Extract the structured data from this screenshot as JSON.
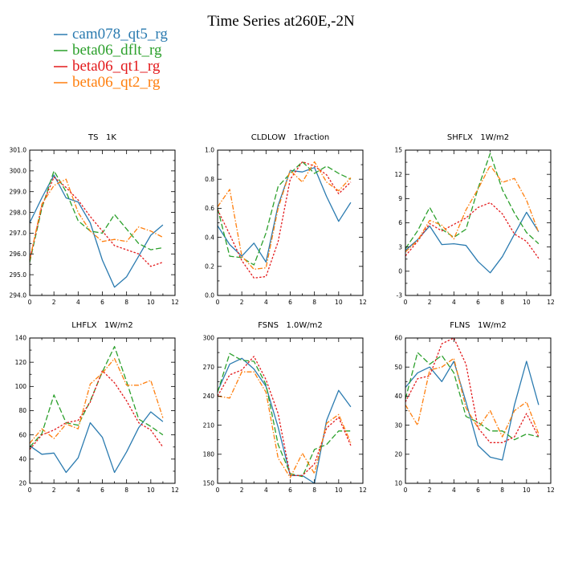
{
  "figure_title": "Time Series at260E,-2N",
  "colors": {
    "cam078_qt5_rg": "#2b7bb0",
    "beta06_dflt_rg": "#2ca02c",
    "beta06_qt1_rg": "#e31a1c",
    "beta06_qt2_rg": "#ff7f0e"
  },
  "legend": [
    {
      "name": "cam078_qt5_rg",
      "color": "#2b7bb0"
    },
    {
      "name": "beta06_dflt_rg",
      "color": "#2ca02c"
    },
    {
      "name": "beta06_qt1_rg",
      "color": "#e31a1c"
    },
    {
      "name": "beta06_qt2_rg",
      "color": "#ff7f0e"
    }
  ],
  "chart_data": [
    {
      "type": "line",
      "title": "TS   1K",
      "x": [
        0,
        1,
        2,
        3,
        4,
        5,
        6,
        7,
        8,
        9,
        10,
        11
      ],
      "xlim": [
        0,
        12
      ],
      "xticks": [
        "0",
        "2",
        "4",
        "6",
        "8",
        "10",
        "12"
      ],
      "ylim": [
        294,
        301
      ],
      "yticks": [
        "294.0",
        "295.0",
        "296.0",
        "297.0",
        "298.0",
        "299.0",
        "300.0",
        "301.0"
      ],
      "series": [
        {
          "name": "cam078_qt5_rg",
          "values": [
            297.5,
            298.7,
            299.8,
            298.7,
            298.5,
            297.5,
            295.7,
            294.4,
            294.9,
            295.9,
            296.9,
            297.4
          ]
        },
        {
          "name": "beta06_dflt_rg",
          "values": [
            295.6,
            298.2,
            300.0,
            299.0,
            297.6,
            297.1,
            297.0,
            297.9,
            297.2,
            296.5,
            296.2,
            296.3
          ]
        },
        {
          "name": "beta06_qt1_rg",
          "values": [
            295.7,
            298.3,
            299.7,
            299.2,
            298.6,
            297.8,
            297.1,
            296.4,
            296.2,
            296.0,
            295.4,
            295.6
          ]
        },
        {
          "name": "beta06_qt2_rg",
          "values": [
            295.7,
            298.4,
            299.3,
            299.6,
            298.0,
            297.1,
            296.6,
            296.7,
            296.6,
            297.3,
            297.1,
            296.8
          ]
        }
      ]
    },
    {
      "type": "line",
      "title": "CLDLOW   1fraction",
      "x": [
        0,
        1,
        2,
        3,
        4,
        5,
        6,
        7,
        8,
        9,
        10,
        11
      ],
      "xlim": [
        0,
        12
      ],
      "xticks": [
        "0",
        "2",
        "4",
        "6",
        "8",
        "10",
        "12"
      ],
      "ylim": [
        0,
        1
      ],
      "yticks": [
        "0.0",
        "0.2",
        "0.4",
        "0.6",
        "0.8",
        "1.0"
      ],
      "series": [
        {
          "name": "cam078_qt5_rg",
          "values": [
            0.48,
            0.35,
            0.27,
            0.36,
            0.23,
            0.62,
            0.86,
            0.85,
            0.88,
            0.68,
            0.51,
            0.64
          ]
        },
        {
          "name": "beta06_dflt_rg",
          "values": [
            0.6,
            0.27,
            0.26,
            0.21,
            0.43,
            0.75,
            0.84,
            0.92,
            0.84,
            0.89,
            0.84,
            0.8
          ]
        },
        {
          "name": "beta06_qt1_rg",
          "values": [
            0.59,
            0.42,
            0.24,
            0.12,
            0.13,
            0.37,
            0.8,
            0.92,
            0.89,
            0.83,
            0.7,
            0.78
          ]
        },
        {
          "name": "beta06_qt2_rg",
          "values": [
            0.61,
            0.73,
            0.27,
            0.18,
            0.19,
            0.6,
            0.86,
            0.78,
            0.92,
            0.78,
            0.72,
            0.81
          ]
        }
      ]
    },
    {
      "type": "line",
      "title": "SHFLX   1W/m2",
      "x": [
        0,
        1,
        2,
        3,
        4,
        5,
        6,
        7,
        8,
        9,
        10,
        11
      ],
      "xlim": [
        0,
        12
      ],
      "xticks": [
        "0",
        "2",
        "4",
        "6",
        "8",
        "10",
        "12"
      ],
      "ylim": [
        -3,
        15
      ],
      "yticks": [
        "-3",
        "0",
        "3",
        "6",
        "9",
        "12",
        "15"
      ],
      "series": [
        {
          "name": "cam078_qt5_rg",
          "values": [
            2.6,
            3.9,
            5.6,
            3.3,
            3.4,
            3.2,
            1.2,
            -0.2,
            1.8,
            4.6,
            7.3,
            4.9
          ]
        },
        {
          "name": "beta06_dflt_rg",
          "values": [
            2.8,
            5.0,
            7.9,
            5.2,
            4.2,
            5.2,
            10.3,
            14.6,
            10.1,
            7.2,
            4.8,
            3.4
          ]
        },
        {
          "name": "beta06_qt1_rg",
          "values": [
            1.9,
            3.7,
            5.9,
            5.0,
            5.8,
            6.6,
            7.9,
            8.5,
            7.1,
            4.6,
            3.7,
            1.6
          ]
        },
        {
          "name": "beta06_qt2_rg",
          "values": [
            2.4,
            3.8,
            6.3,
            5.7,
            4.0,
            7.6,
            10.2,
            13.1,
            11.0,
            11.5,
            8.8,
            4.8
          ]
        }
      ]
    },
    {
      "type": "line",
      "title": "LHFLX   1W/m2",
      "x": [
        0,
        1,
        2,
        3,
        4,
        5,
        6,
        7,
        8,
        9,
        10,
        11
      ],
      "xlim": [
        0,
        12
      ],
      "xticks": [
        "0",
        "2",
        "4",
        "6",
        "8",
        "10",
        "12"
      ],
      "ylim": [
        20,
        140
      ],
      "yticks": [
        "20",
        "40",
        "60",
        "80",
        "100",
        "120",
        "140"
      ],
      "series": [
        {
          "name": "cam078_qt5_rg",
          "values": [
            51,
            44,
            45,
            29,
            41,
            70,
            58,
            29,
            46,
            66,
            79,
            71
          ]
        },
        {
          "name": "beta06_dflt_rg",
          "values": [
            50,
            61,
            93,
            70,
            68,
            88,
            112,
            133,
            104,
            73,
            67,
            60
          ]
        },
        {
          "name": "beta06_qt1_rg",
          "values": [
            48,
            60,
            64,
            70,
            72,
            87,
            113,
            103,
            88,
            70,
            64,
            50
          ]
        },
        {
          "name": "beta06_qt2_rg",
          "values": [
            53,
            65,
            57,
            69,
            65,
            102,
            111,
            123,
            101,
            101,
            105,
            74
          ]
        }
      ]
    },
    {
      "type": "line",
      "title": "FSNS   1.0W/m2",
      "x": [
        0,
        1,
        2,
        3,
        4,
        5,
        6,
        7,
        8,
        9,
        10,
        11
      ],
      "xlim": [
        0,
        12
      ],
      "xticks": [
        "0",
        "2",
        "4",
        "6",
        "8",
        "10",
        "12"
      ],
      "ylim": [
        150,
        300
      ],
      "yticks": [
        "150",
        "180",
        "210",
        "240",
        "270",
        "300"
      ],
      "series": [
        {
          "name": "cam078_qt5_rg",
          "values": [
            245,
            273,
            279,
            268,
            250,
            208,
            158,
            158,
            150,
            215,
            246,
            229
          ]
        },
        {
          "name": "beta06_dflt_rg",
          "values": [
            244,
            284,
            277,
            276,
            252,
            190,
            160,
            157,
            185,
            190,
            204,
            204
          ]
        },
        {
          "name": "beta06_qt1_rg",
          "values": [
            240,
            262,
            267,
            281,
            257,
            222,
            158,
            158,
            170,
            207,
            218,
            189
          ]
        },
        {
          "name": "beta06_qt2_rg",
          "values": [
            240,
            238,
            265,
            265,
            244,
            176,
            156,
            181,
            160,
            212,
            221,
            192
          ]
        }
      ]
    },
    {
      "type": "line",
      "title": "FLNS   1W/m2",
      "x": [
        0,
        1,
        2,
        3,
        4,
        5,
        6,
        7,
        8,
        9,
        10,
        11
      ],
      "xlim": [
        0,
        12
      ],
      "xticks": [
        "0",
        "2",
        "4",
        "6",
        "8",
        "10",
        "12"
      ],
      "ylim": [
        10,
        60
      ],
      "yticks": [
        "10",
        "20",
        "30",
        "40",
        "50",
        "60"
      ],
      "series": [
        {
          "name": "cam078_qt5_rg",
          "values": [
            43,
            48,
            50,
            45,
            52,
            38,
            23,
            19,
            18,
            37,
            52,
            37
          ]
        },
        {
          "name": "beta06_dflt_rg",
          "values": [
            39,
            55,
            51,
            54,
            48,
            33,
            31,
            28,
            28,
            25,
            27,
            26
          ]
        },
        {
          "name": "beta06_qt1_rg",
          "values": [
            38,
            46,
            47,
            58,
            60,
            51,
            29,
            24,
            24,
            26,
            34,
            26
          ]
        },
        {
          "name": "beta06_qt2_rg",
          "values": [
            37,
            30,
            49,
            50,
            53,
            36,
            29,
            35,
            26,
            35,
            38,
            27
          ]
        }
      ]
    }
  ]
}
